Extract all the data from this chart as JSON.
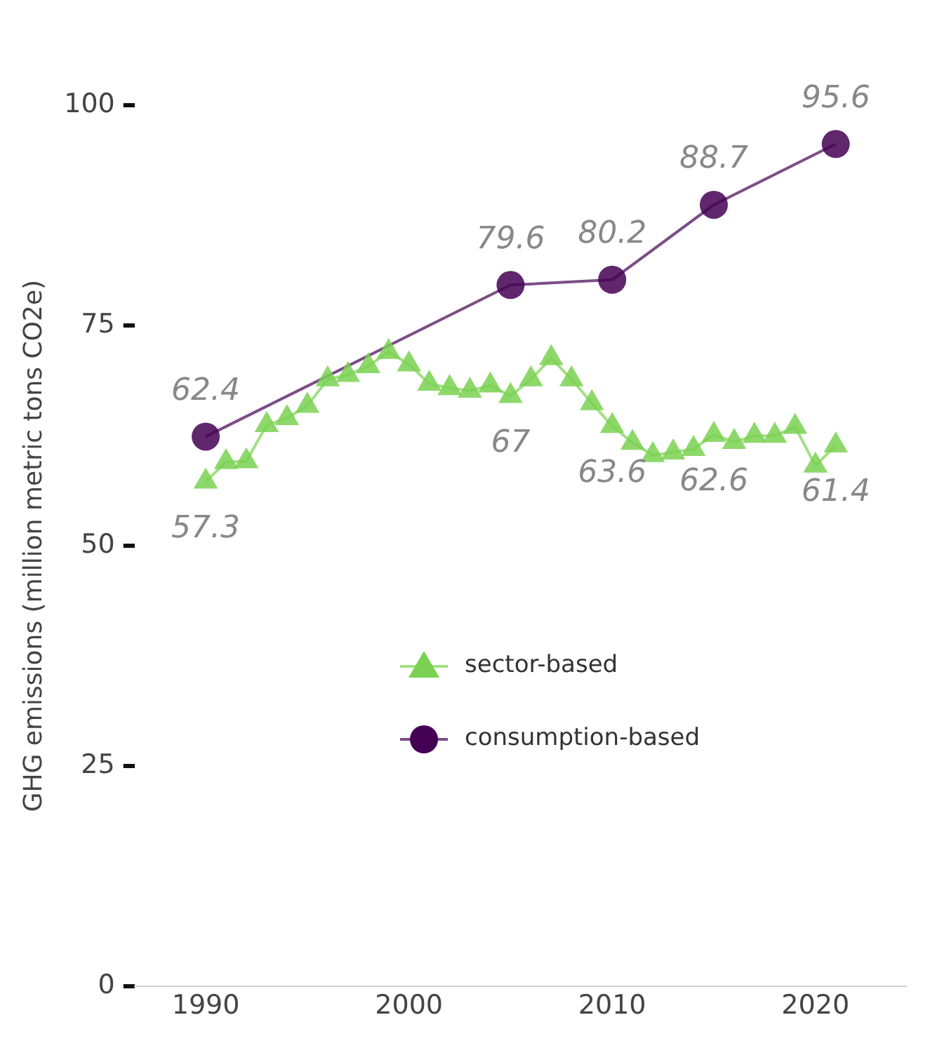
{
  "chart_data": {
    "type": "line",
    "ylabel": "GHG emissions (million metric tons CO2e)",
    "xlim": [
      1986.5,
      2024.5
    ],
    "xticks": [
      1990,
      2000,
      2010,
      2020
    ],
    "ylim": [
      0,
      100
    ],
    "yticks": [
      0,
      25,
      50,
      75,
      100
    ],
    "grid": false,
    "legend": "center",
    "series": [
      {
        "name": "sector-based",
        "color": "#7ad151",
        "marker": "triangle",
        "x": [
          1990,
          1991,
          1992,
          1993,
          1994,
          1995,
          1996,
          1997,
          1998,
          1999,
          2000,
          2001,
          2002,
          2003,
          2004,
          2005,
          2006,
          2007,
          2008,
          2009,
          2010,
          2011,
          2012,
          2013,
          2014,
          2015,
          2016,
          2017,
          2018,
          2019,
          2020,
          2021
        ],
        "values": [
          57.3,
          59.5,
          59.6,
          63.7,
          64.5,
          65.9,
          68.9,
          69.4,
          70.4,
          72,
          70.6,
          68.4,
          67.9,
          67.6,
          68.2,
          67,
          68.9,
          71.3,
          68.9,
          66.2,
          63.6,
          61.7,
          60.3,
          60.6,
          61,
          62.6,
          61.8,
          62.5,
          62.5,
          63.5,
          59.1,
          61.4
        ],
        "value_labels": [
          "57.3",
          null,
          null,
          null,
          null,
          null,
          null,
          null,
          null,
          null,
          null,
          null,
          null,
          null,
          null,
          "67",
          null,
          null,
          null,
          null,
          "63.6",
          null,
          null,
          null,
          null,
          "62.6",
          null,
          null,
          null,
          null,
          null,
          "61.4"
        ]
      },
      {
        "name": "consumption-based",
        "color": "#440154",
        "marker": "circle",
        "x": [
          1990,
          2005,
          2010,
          2015,
          2021
        ],
        "values": [
          62.4,
          79.6,
          80.2,
          88.7,
          95.6
        ],
        "value_labels": [
          "62.4",
          "79.6",
          "80.2",
          "88.7",
          "95.6"
        ]
      }
    ]
  }
}
